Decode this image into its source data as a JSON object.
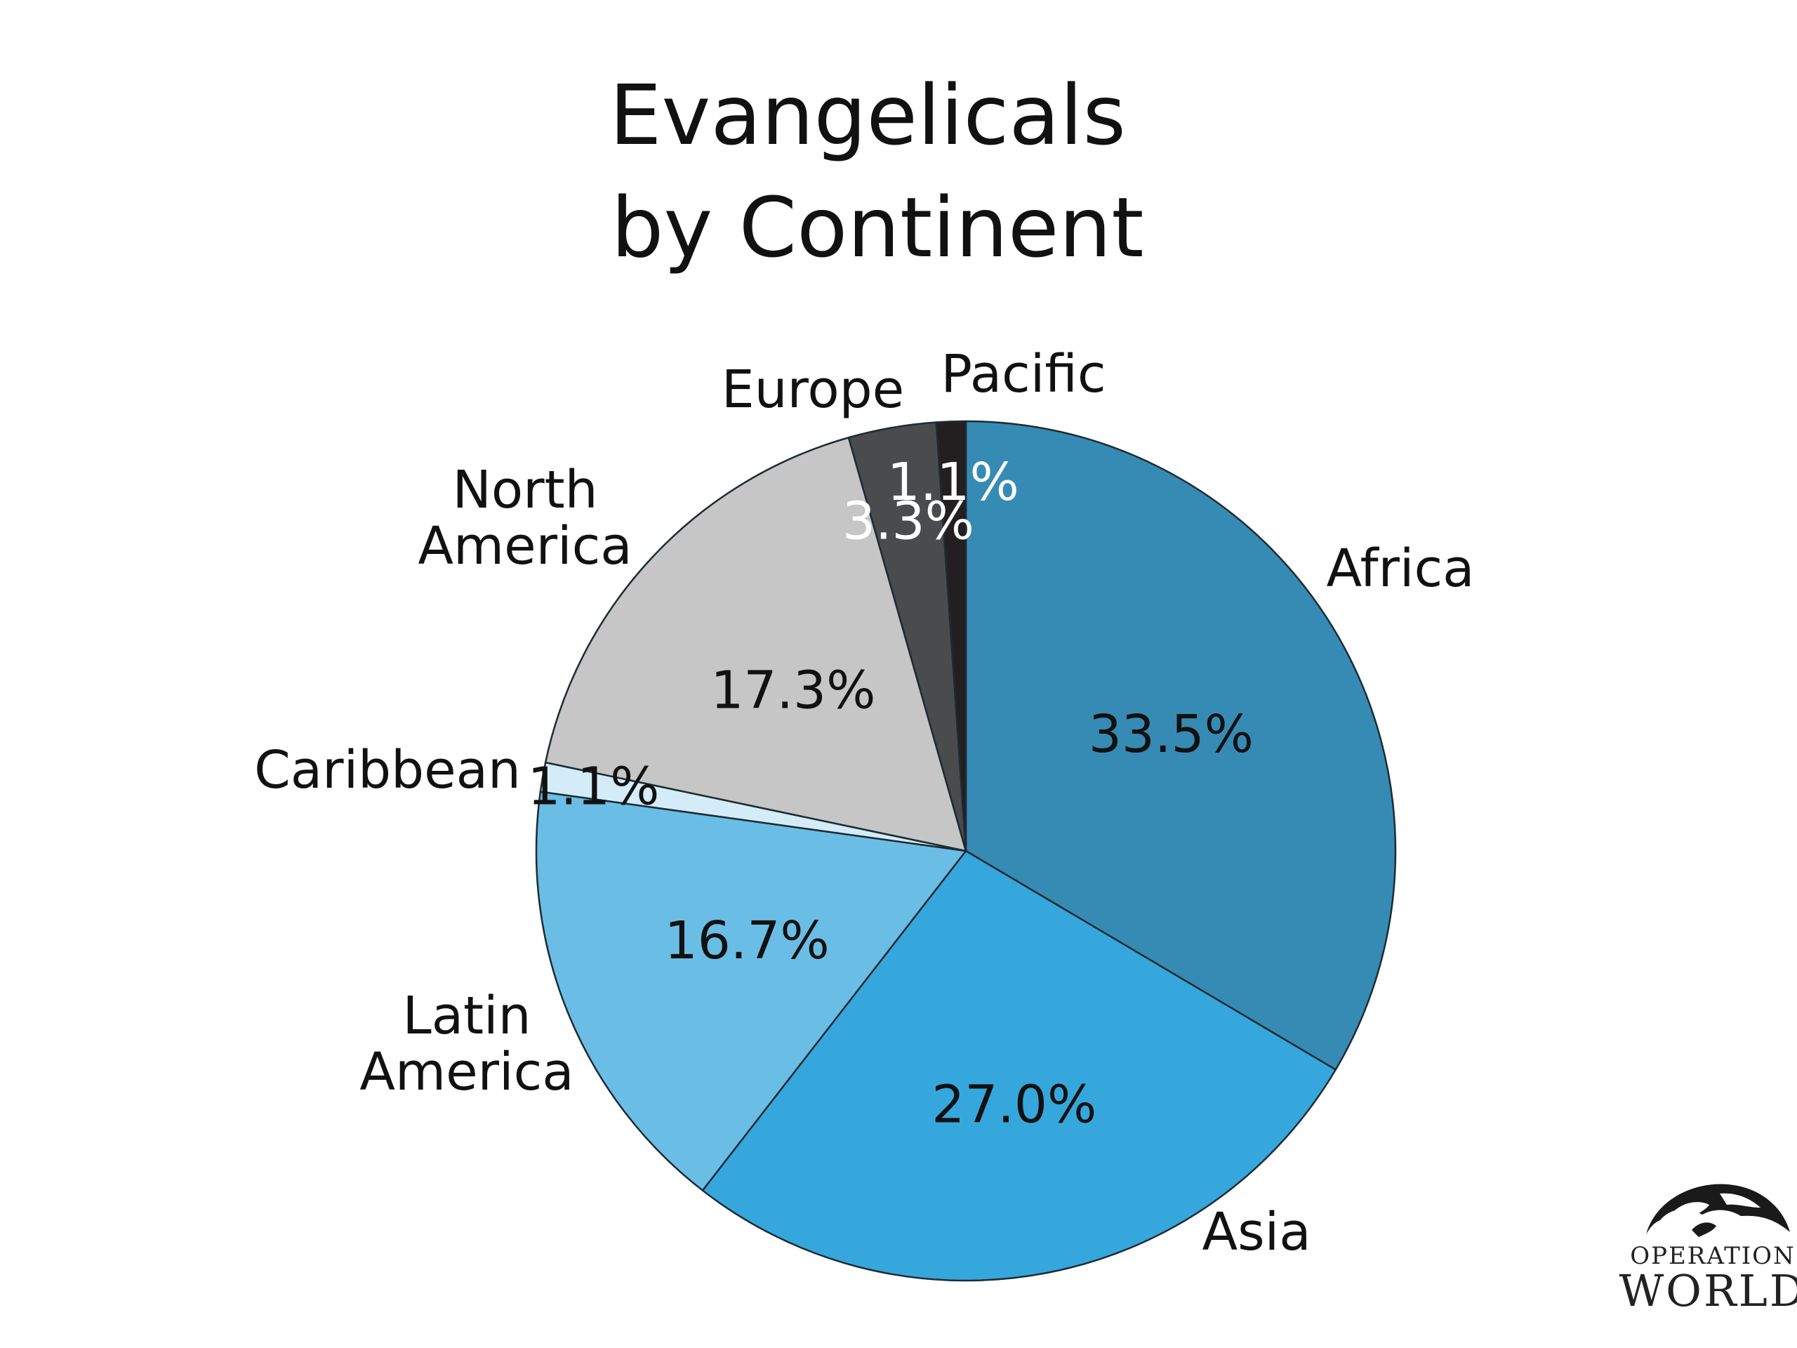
{
  "chart_data": {
    "type": "pie",
    "title": [
      "Evangelicals",
      "by Continent"
    ],
    "start": "12 o'clock",
    "direction": "clockwise",
    "slices": [
      {
        "label": [
          "Africa"
        ],
        "value": 33.5,
        "value_label": "33.5%",
        "color": "#368BB4",
        "value_text_color": "#111111"
      },
      {
        "label": [
          "Asia"
        ],
        "value": 27.0,
        "value_label": "27.0%",
        "color": "#36A7DC",
        "value_text_color": "#111111"
      },
      {
        "label": [
          "Latin",
          "America"
        ],
        "value": 16.7,
        "value_label": "16.7%",
        "color": "#6ABEE6",
        "value_text_color": "#111111"
      },
      {
        "label": [
          "Caribbean"
        ],
        "value": 1.1,
        "value_label": "1.1%",
        "color": "#D4ECF8",
        "value_text_color": "#111111"
      },
      {
        "label": [
          "North",
          "America"
        ],
        "value": 17.3,
        "value_label": "17.3%",
        "color": "#C6C6C6",
        "value_text_color": "#111111"
      },
      {
        "label": [
          "Europe"
        ],
        "value": 3.3,
        "value_label": "3.3%",
        "color": "#4A4B4D",
        "value_text_color": "#ffffff"
      },
      {
        "label": [
          "Pacific"
        ],
        "value": 1.1,
        "value_label": "1.1%",
        "color": "#231F20",
        "value_text_color": "#ffffff"
      }
    ]
  },
  "logo": {
    "line1": "OPERATION",
    "line2": "WORLD",
    "icon": "globe-icon"
  }
}
